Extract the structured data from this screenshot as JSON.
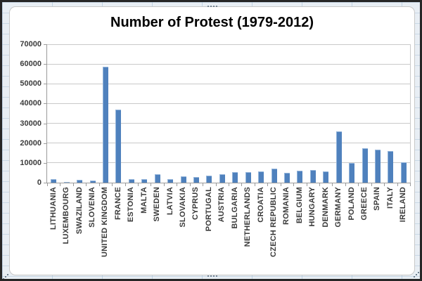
{
  "chart_data": {
    "type": "bar",
    "title": "Number of Protest (1979-2012)",
    "categories": [
      "LITHUANIA",
      "LUXEMBOURG",
      "SWAZILAND",
      "SLOVENIA",
      "UNITED KINGDOM",
      "FRANCE",
      "ESTONIA",
      "MALTA",
      "SWEDEN",
      "LATVIA",
      "SLOVAKIA",
      "CYPRUS",
      "PORTUGAL",
      "AUSTRIA",
      "BULGARIA",
      "NETHERLANDS",
      "CROATIA",
      "CZECH REPUBLIC",
      "ROMANIA",
      "BELGIUM",
      "HUNGARY",
      "DENMARK",
      "GERMANY",
      "POLAND",
      "GREECE",
      "SPAIN",
      "ITALY",
      "IRELAND"
    ],
    "values": [
      1800,
      250,
      1550,
      1000,
      58800,
      36900,
      1600,
      1900,
      4200,
      1900,
      3050,
      2950,
      3400,
      4350,
      5300,
      5200,
      5650,
      7200,
      5150,
      6100,
      6250,
      5750,
      26100,
      10100,
      17400,
      16600,
      16100,
      10200
    ],
    "xlabel": "",
    "ylabel": "",
    "ylim": [
      0,
      70000
    ],
    "yticks": [
      0,
      10000,
      20000,
      30000,
      40000,
      50000,
      60000,
      70000
    ],
    "grid": true,
    "legend_position": "none",
    "label_rotation_deg": -90,
    "colors": {
      "bar": "#4F81BD",
      "bar_highlight": "#94B5DB",
      "gridline": "#C9C9C9",
      "axis_line": "#9B9B9B",
      "axis_text": "#3B3B3B",
      "title_text": "#000000",
      "chart_background": "#FFFFFF",
      "sheet_background": "#E8EEF4"
    }
  }
}
